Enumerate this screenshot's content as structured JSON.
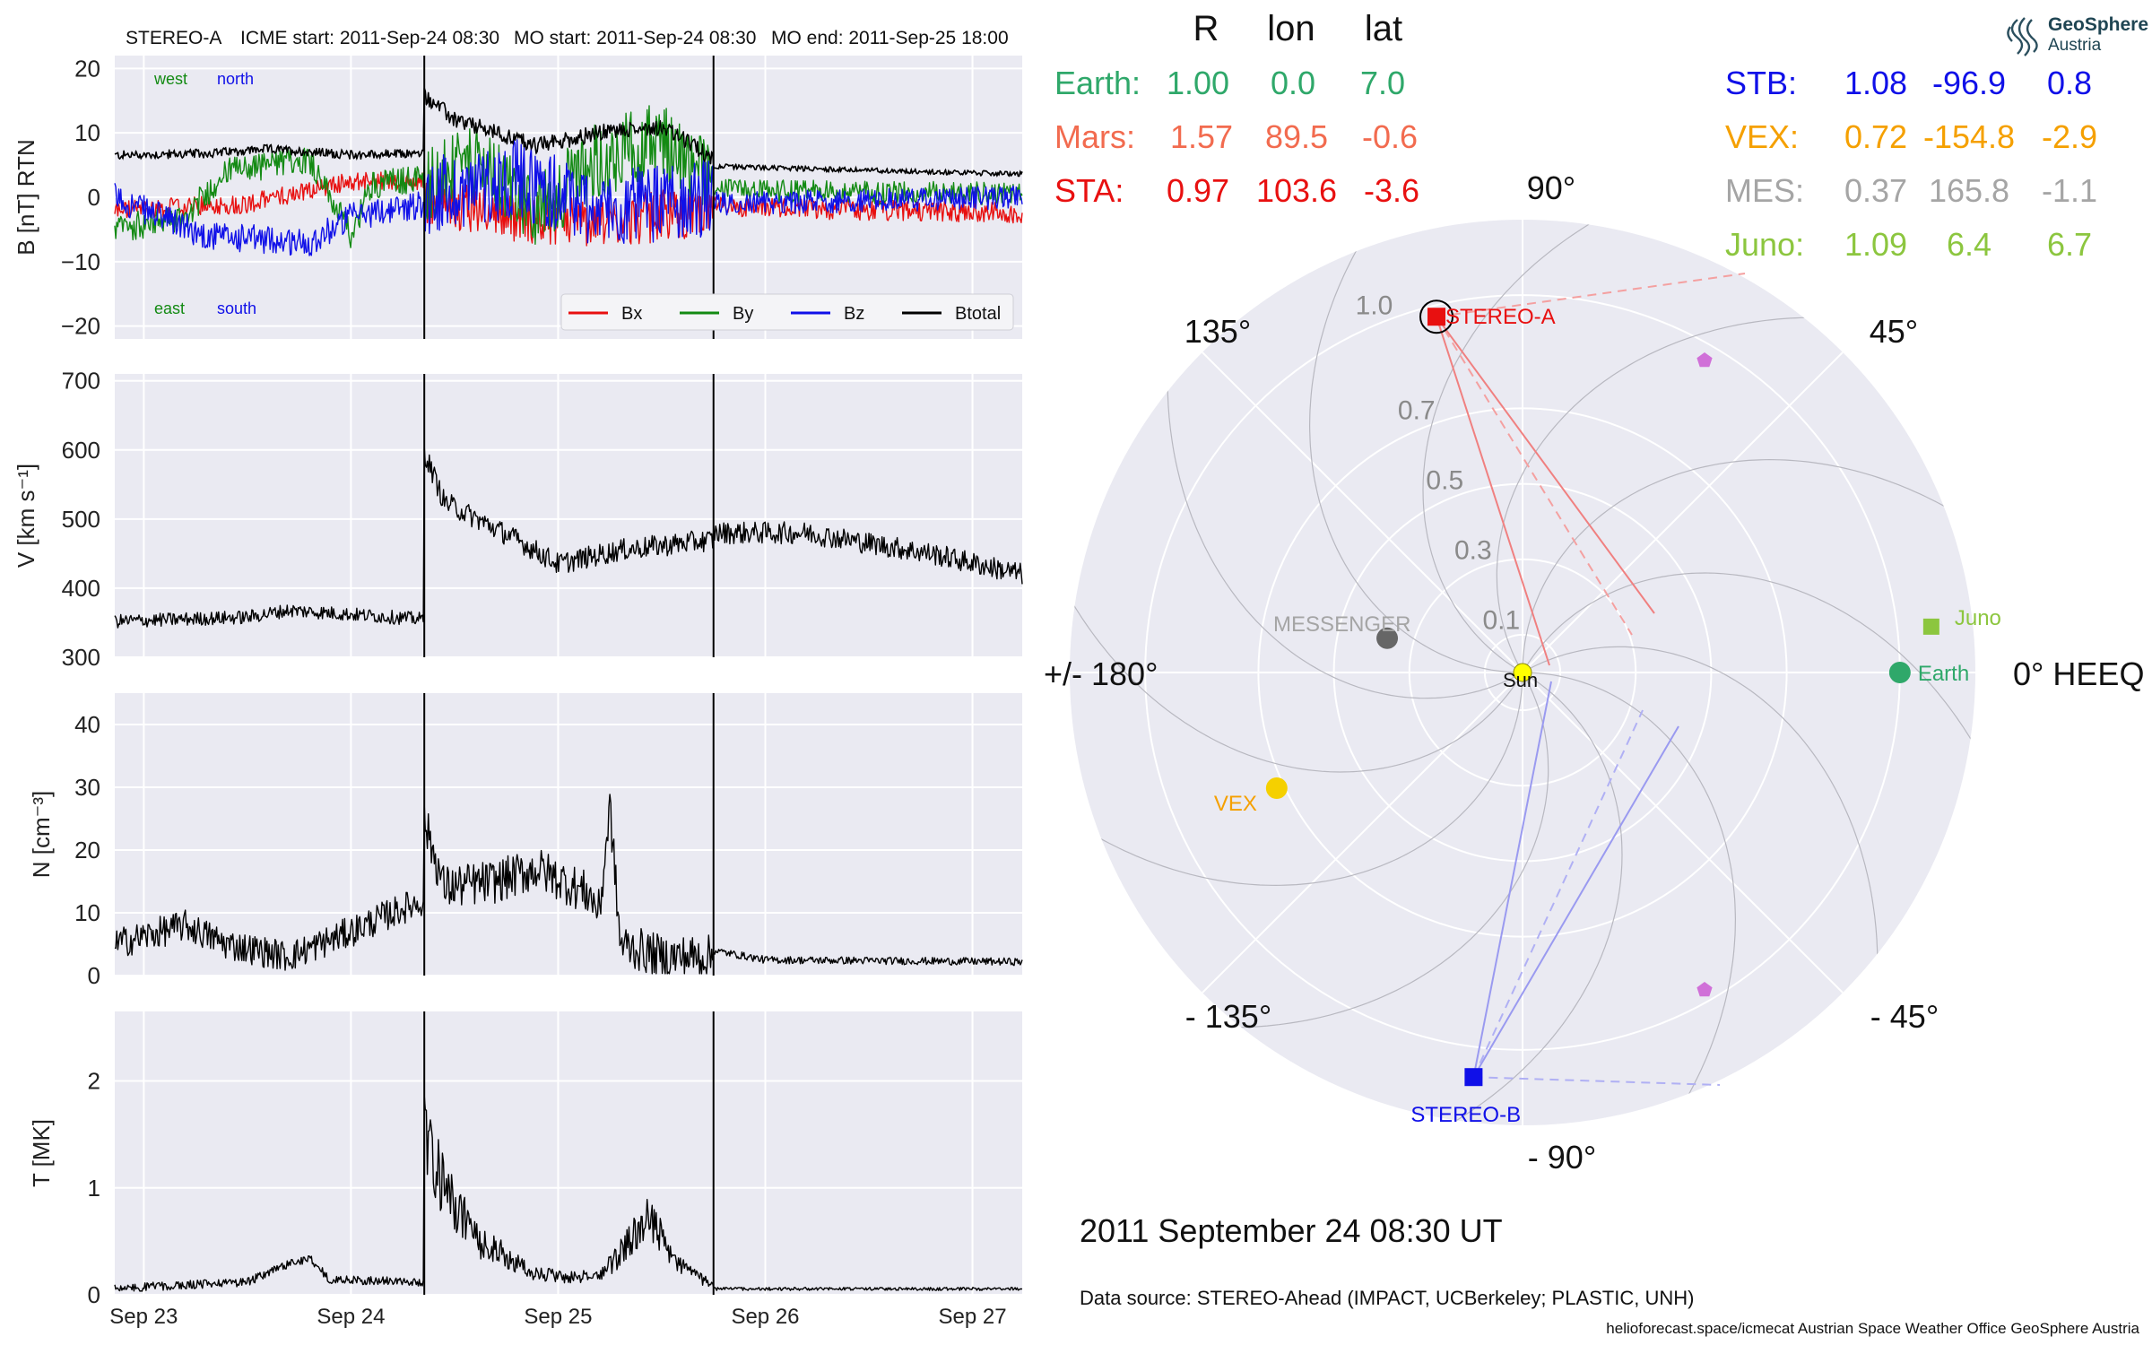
{
  "header": {
    "spacecraft": "STEREO-A",
    "icme_start": "ICME start: 2011-Sep-24 08:30",
    "mo_start": "MO start: 2011-Sep-24 08:30",
    "mo_end": "MO end: 2011-Sep-25 18:00"
  },
  "logo": {
    "line1": "GeoSphere",
    "line2": "Austria"
  },
  "chart_data": [
    {
      "type": "line",
      "ylabel": "B [nT] RTN",
      "ylim": [
        -22,
        22
      ],
      "yticks": [
        "20",
        "10",
        "0",
        "−10",
        "−20"
      ],
      "ytick_values": [
        20,
        10,
        0,
        -10,
        -20
      ],
      "annotations": {
        "west": "west",
        "north": "north",
        "east": "east",
        "south": "south"
      },
      "legend": {
        "placement": "lower-right",
        "entries": [
          "Bx",
          "By",
          "Bz",
          "Btotal"
        ]
      },
      "series": [
        {
          "name": "Bx",
          "color": "#e81010"
        },
        {
          "name": "By",
          "color": "#138a13"
        },
        {
          "name": "Bz",
          "color": "#1010e8"
        },
        {
          "name": "Btotal",
          "color": "#000000"
        }
      ]
    },
    {
      "type": "line",
      "ylabel": "V [km s⁻¹]",
      "ylim": [
        300,
        710
      ],
      "yticks": [
        "700",
        "600",
        "500",
        "400",
        "300"
      ],
      "ytick_values": [
        700,
        600,
        500,
        400,
        300
      ]
    },
    {
      "type": "line",
      "ylabel": "N [cm⁻³]",
      "ylim": [
        0,
        45
      ],
      "yticks": [
        "40",
        "30",
        "20",
        "10",
        "0"
      ],
      "ytick_values": [
        40,
        30,
        20,
        10,
        0
      ]
    },
    {
      "type": "line",
      "ylabel": "T [MK]",
      "ylim": [
        0,
        2.65
      ],
      "yticks": [
        "2",
        "1",
        "0"
      ],
      "ytick_values": [
        2,
        1,
        0
      ]
    }
  ],
  "time_axis": {
    "range_days": [
      22.86,
      27.24
    ],
    "ticks": [
      "Sep 23",
      "Sep 24",
      "Sep 25",
      "Sep 26",
      "Sep 27"
    ],
    "tick_days": [
      23,
      24,
      25,
      26,
      27
    ],
    "vlines_days": [
      24.354,
      25.75
    ]
  },
  "positions": {
    "headers": [
      "R",
      "lon",
      "lat"
    ],
    "rows": [
      {
        "name": "Earth:",
        "r": "1.00",
        "lon": "0.0",
        "lat": "7.0",
        "color": "#2fa86a"
      },
      {
        "name": "Mars:",
        "r": "1.57",
        "lon": "89.5",
        "lat": "-0.6",
        "color": "#f26b4f"
      },
      {
        "name": "STA:",
        "r": "0.97",
        "lon": "103.6",
        "lat": "-3.6",
        "color": "#e81010"
      },
      {
        "name": "STB:",
        "r": "1.08",
        "lon": "-96.9",
        "lat": "0.8",
        "color": "#1010e8"
      },
      {
        "name": "VEX:",
        "r": "0.72",
        "lon": "-154.8",
        "lat": "-2.9",
        "color": "#f5a000"
      },
      {
        "name": "MES:",
        "r": "0.37",
        "lon": "165.8",
        "lat": "-1.1",
        "color": "#a5a5a5"
      },
      {
        "name": "Juno:",
        "r": "1.09",
        "lon": "6.4",
        "lat": "6.7",
        "color": "#8cc63f"
      }
    ]
  },
  "polar": {
    "angle_labels": [
      "90°",
      "45°",
      "0° HEEQ",
      "- 45°",
      "- 90°",
      "- 135°",
      "+/- 180°",
      "135°"
    ],
    "radial_labels": [
      "1.0",
      "0.7",
      "0.5",
      "0.3",
      "0.1"
    ],
    "radial_values": [
      1.0,
      0.7,
      0.5,
      0.3,
      0.1
    ],
    "bodies": [
      {
        "name": "STEREO-A",
        "r": 0.97,
        "lon": 103.6,
        "color": "#e81010",
        "marker": "square",
        "label_color": "#e81010"
      },
      {
        "name": "STEREO-B",
        "r": 1.08,
        "lon": -96.9,
        "color": "#1010e8",
        "marker": "square",
        "label_color": "#1010e8"
      },
      {
        "name": "Earth",
        "r": 1.0,
        "lon": 0.0,
        "color": "#2fa86a",
        "marker": "circle",
        "label_color": "#2fa86a"
      },
      {
        "name": "Juno",
        "r": 1.09,
        "lon": 6.4,
        "color": "#8cc63f",
        "marker": "square",
        "label_color": "#8cc63f"
      },
      {
        "name": "MESSENGER",
        "r": 0.37,
        "lon": 165.8,
        "color": "#666666",
        "marker": "circle",
        "label_color": "#a5a5a5"
      },
      {
        "name": "VEX",
        "r": 0.72,
        "lon": -154.8,
        "color": "#f5d000",
        "marker": "circle",
        "label_color": "#f5a000"
      },
      {
        "name": "Sun",
        "r": 0,
        "lon": 0,
        "color": "#ffff00",
        "marker": "circle",
        "label_color": "#111111"
      }
    ]
  },
  "date_label": "2011 September 24  08:30 UT",
  "data_source": "Data source: STEREO-Ahead (IMPACT, UCBerkeley; PLASTIC, UNH)",
  "footer": "helioforecast.space/icmecat   Austrian Space Weather Office   GeoSphere Austria"
}
